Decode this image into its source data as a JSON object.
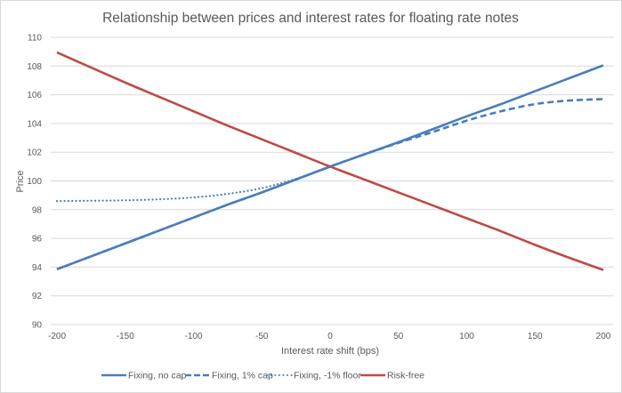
{
  "chart_data": {
    "type": "line",
    "title": "Relationship between prices and interest rates for floating rate notes",
    "xlabel": "Interest rate shift (bps)",
    "ylabel": "Price",
    "xlim": [
      -200,
      200
    ],
    "ylim": [
      90,
      110
    ],
    "x_ticks": [
      -200,
      -150,
      -100,
      -50,
      0,
      50,
      100,
      150,
      200
    ],
    "y_ticks": [
      90,
      92,
      94,
      96,
      98,
      100,
      102,
      104,
      106,
      108,
      110
    ],
    "grid": "horizontal",
    "legend_position": "bottom",
    "x": [
      -200,
      -175,
      -150,
      -125,
      -100,
      -75,
      -50,
      -25,
      0,
      25,
      50,
      75,
      100,
      125,
      150,
      175,
      200
    ],
    "series": [
      {
        "name": "Fixing, no cap",
        "color": "#4a7ebb",
        "style": "solid",
        "values": [
          93.85,
          94.75,
          95.65,
          96.55,
          97.45,
          98.35,
          99.2,
          100.1,
          101.0,
          101.85,
          102.7,
          103.6,
          104.5,
          105.35,
          106.25,
          107.15,
          108.05
        ]
      },
      {
        "name": "Fixing, 1% cap",
        "color": "#4a7ebb",
        "style": "dashed",
        "values": [
          93.85,
          94.75,
          95.65,
          96.55,
          97.45,
          98.35,
          99.2,
          100.1,
          101.0,
          101.85,
          102.65,
          103.4,
          104.2,
          104.85,
          105.35,
          105.6,
          105.7
        ]
      },
      {
        "name": "Fixing, -1% floor",
        "color": "#4a7ebb",
        "style": "dotted",
        "values": [
          98.6,
          98.62,
          98.65,
          98.72,
          98.85,
          99.1,
          99.5,
          100.15,
          101.0,
          101.85,
          102.7,
          103.6,
          104.5,
          105.35,
          106.25,
          107.15,
          108.05
        ]
      },
      {
        "name": "Risk-free",
        "color": "#be4b48",
        "style": "solid",
        "values": [
          108.95,
          107.9,
          106.85,
          105.85,
          104.85,
          103.85,
          102.9,
          101.95,
          101.0,
          100.1,
          99.2,
          98.3,
          97.4,
          96.5,
          95.55,
          94.65,
          93.8
        ]
      }
    ]
  }
}
